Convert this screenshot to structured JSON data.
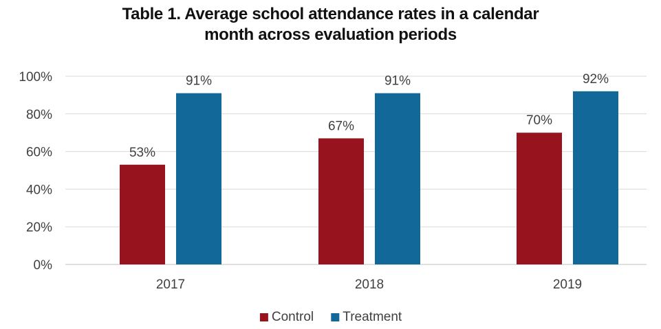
{
  "chart_data": {
    "type": "bar",
    "title": "Table 1. Average school attendance rates in a calendar month across evaluation periods",
    "title_lines": [
      "Table 1. Average school attendance rates in a calendar",
      "month across evaluation periods"
    ],
    "categories": [
      "2017",
      "2018",
      "2019"
    ],
    "series": [
      {
        "name": "Control",
        "color": "#97141f",
        "values": [
          53,
          67,
          70
        ],
        "labels": [
          "53%",
          "67%",
          "70%"
        ]
      },
      {
        "name": "Treatment",
        "color": "#13689a",
        "values": [
          91,
          91,
          92
        ],
        "labels": [
          "91%",
          "91%",
          "92%"
        ]
      }
    ],
    "y_ticks": [
      {
        "value": 0,
        "label": "0%"
      },
      {
        "value": 20,
        "label": "20%"
      },
      {
        "value": 40,
        "label": "40%"
      },
      {
        "value": 60,
        "label": "60%"
      },
      {
        "value": 80,
        "label": "80%"
      },
      {
        "value": 100,
        "label": "100%"
      }
    ],
    "ylim": [
      0,
      100
    ],
    "xlabel": "",
    "ylabel": "",
    "grid": true,
    "legend_position": "bottom"
  }
}
